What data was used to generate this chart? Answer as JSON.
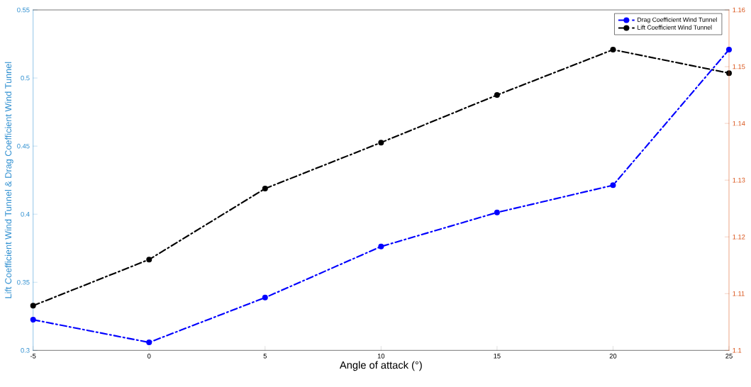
{
  "chart_data": {
    "type": "line",
    "xlabel": "Angle of attack (°)",
    "ylabel": "Lift Coefficient Wind Tunnel & Drag Coefficient Wind Tunnel",
    "x": [
      -5,
      0,
      5,
      10,
      15,
      20,
      25
    ],
    "series": [
      {
        "name": "Drag Coefficient Wind Tunnel",
        "color": "#0000ff",
        "axis": "y2",
        "values": [
          1.1054,
          1.1014,
          1.1093,
          1.1183,
          1.1243,
          1.1291,
          1.153
        ]
      },
      {
        "name": "Lift Coefficient Wind Tunnel",
        "color": "#000000",
        "values": [
          0.3328,
          0.3667,
          0.4188,
          0.4526,
          0.4875,
          0.5208,
          0.5036
        ]
      }
    ],
    "xlim": [
      -5,
      25
    ],
    "xticks": [
      -5,
      0,
      5,
      10,
      15,
      20,
      25
    ],
    "ylim": [
      0.3,
      0.55
    ],
    "yticks": [
      0.3,
      0.35,
      0.4,
      0.45,
      0.5,
      0.55
    ],
    "y2lim": [
      1.1,
      1.16
    ],
    "y2ticks": [
      1.1,
      1.11,
      1.12,
      1.13,
      1.14,
      1.15,
      1.16
    ],
    "grid": false,
    "legend": "top right",
    "marker": "circle",
    "line_style": "dashed"
  }
}
